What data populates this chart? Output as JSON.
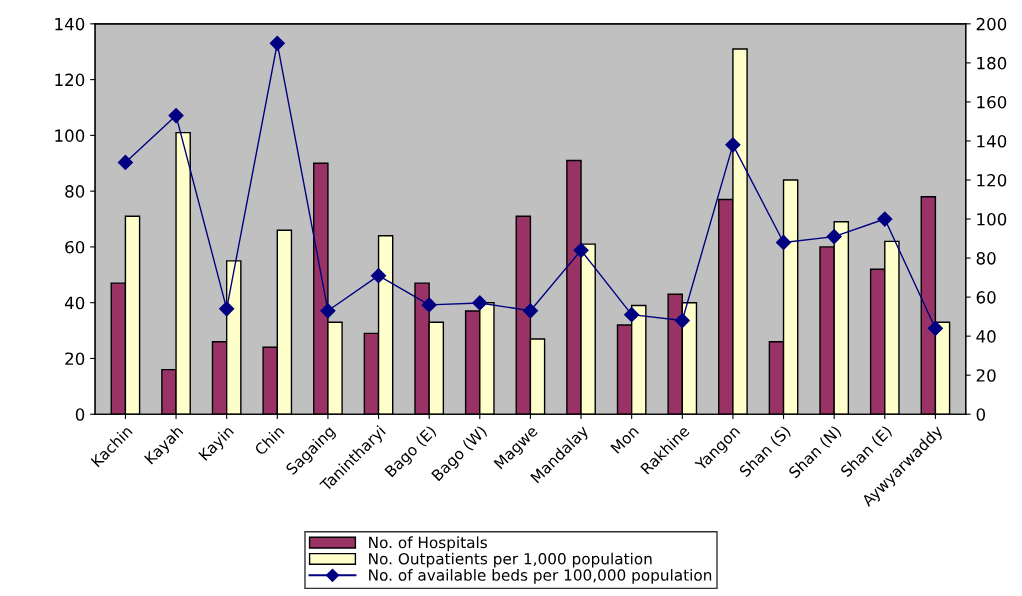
{
  "chart_data": {
    "type": "bar",
    "categories": [
      "Kachin",
      "Kayah",
      "Kayin",
      "Chin",
      "Sagaing",
      "Tanintharyi",
      "Bago (E)",
      "Bago (W)",
      "Magwe",
      "Mandalay",
      "Mon",
      "Rakhine",
      "Yangon",
      "Shan (S)",
      "Shan (N)",
      "Shan (E)",
      "Aywyarwaddy"
    ],
    "series": [
      {
        "name": "No. of Hospitals",
        "color": "#993366",
        "values": [
          47,
          16,
          26,
          24,
          90,
          29,
          47,
          37,
          71,
          91,
          32,
          43,
          77,
          26,
          60,
          52,
          78
        ]
      },
      {
        "name": "No. Outpatients per 1,000 population",
        "color": "#ffffcc",
        "values": [
          71,
          101,
          55,
          66,
          33,
          64,
          33,
          40,
          27,
          61,
          39,
          40,
          131,
          84,
          69,
          62,
          33
        ]
      },
      {
        "name": "No. of available beds per 100,000 population",
        "type": "line",
        "axis": "y2",
        "color": "#000080",
        "values": [
          129,
          153,
          54,
          190,
          53,
          71,
          56,
          57,
          53,
          84,
          51,
          48,
          138,
          88,
          91,
          100,
          44
        ]
      }
    ],
    "ylim": [
      0,
      140
    ],
    "yticks": [
      0,
      20,
      40,
      60,
      80,
      100,
      120,
      140
    ],
    "y2lim": [
      0,
      200
    ],
    "y2ticks": [
      0,
      20,
      40,
      60,
      80,
      100,
      120,
      140,
      160,
      180,
      200
    ],
    "marker": "diamond",
    "line_style": "solid",
    "grid": false,
    "legend": "bottom"
  }
}
